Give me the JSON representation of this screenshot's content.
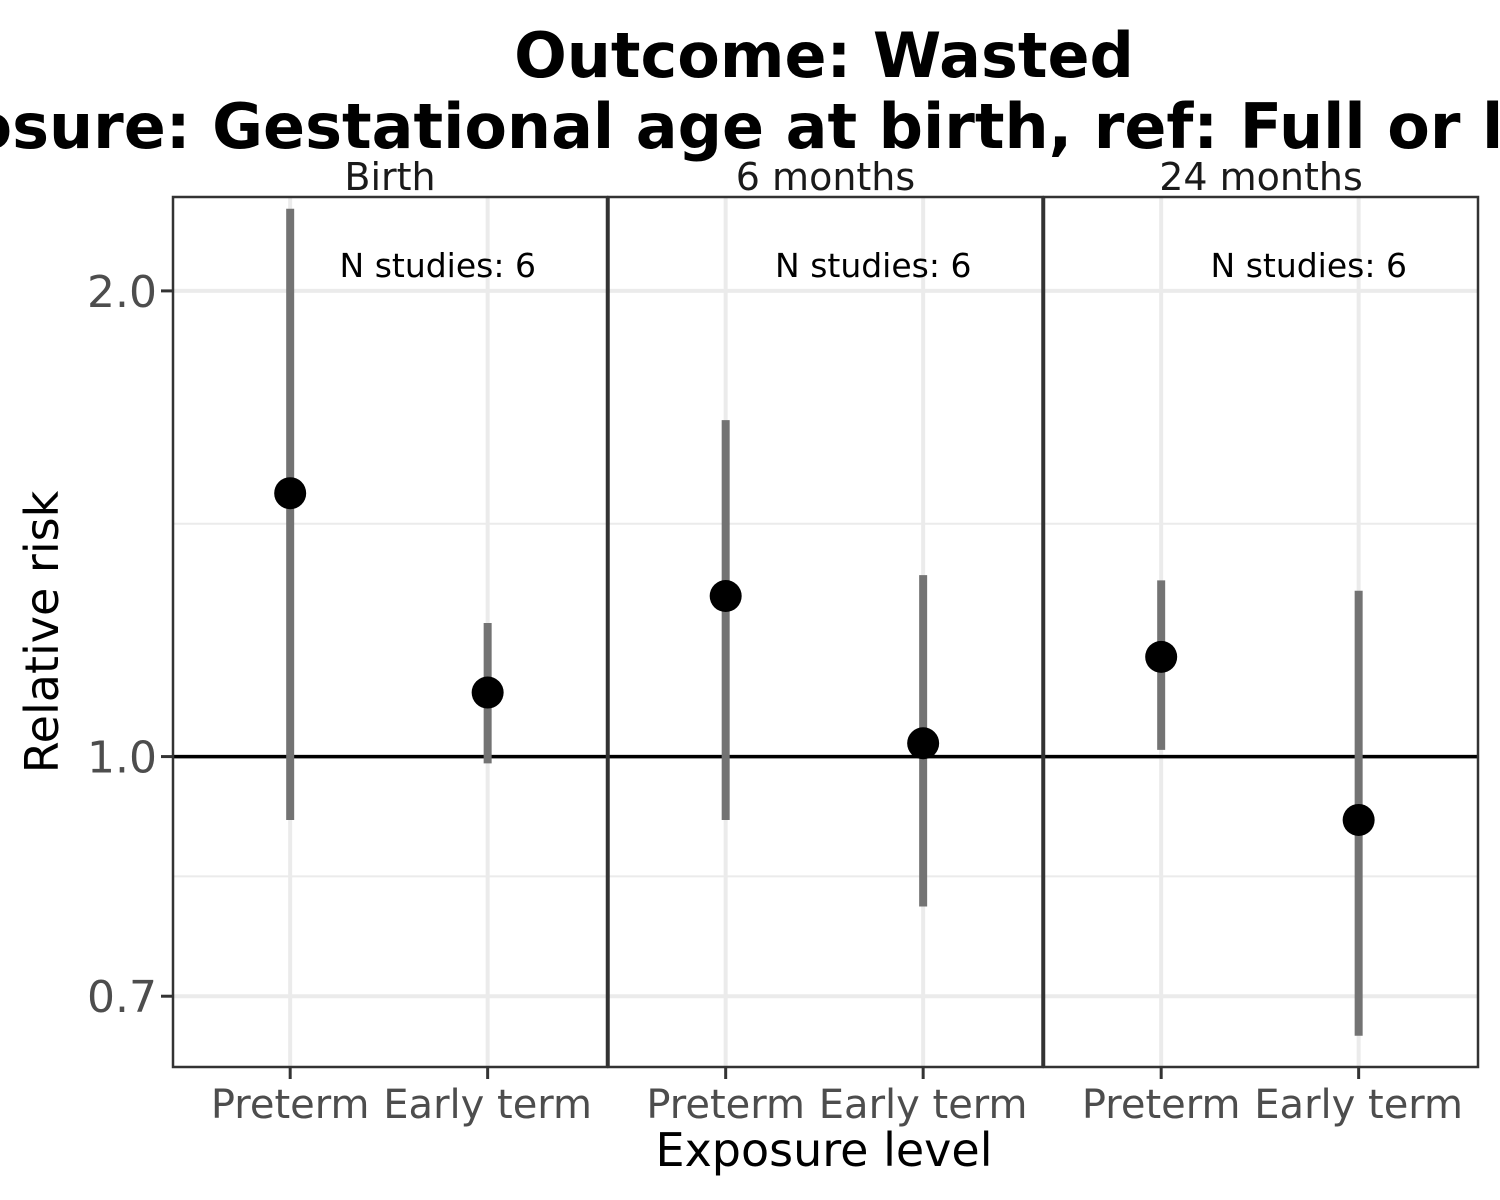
{
  "chart_data": {
    "type": "scatter",
    "title_lines": [
      "Outcome: Wasted",
      "Exposure: Gestational age at birth, ref: Full or late term"
    ],
    "xlabel": "Exposure level",
    "ylabel": "Relative risk",
    "y_scale": "log",
    "ylim": [
      0.63,
      2.3
    ],
    "y_ticks": [
      0.7,
      1.0,
      2.0
    ],
    "y_tick_labels": [
      "0.7",
      "1.0",
      "2.0"
    ],
    "reference_line": 1.0,
    "categories": [
      "Preterm",
      "Early term"
    ],
    "grid": true,
    "panels": [
      {
        "label": "Birth",
        "note": "N studies: 6",
        "points": [
          {
            "category": "Preterm",
            "rr": 1.48,
            "lower": 0.91,
            "upper": 2.26
          },
          {
            "category": "Early term",
            "rr": 1.1,
            "lower": 0.99,
            "upper": 1.22
          }
        ]
      },
      {
        "label": "6 months",
        "note": "N studies: 6",
        "points": [
          {
            "category": "Preterm",
            "rr": 1.27,
            "lower": 0.91,
            "upper": 1.65
          },
          {
            "category": "Early term",
            "rr": 1.02,
            "lower": 0.8,
            "upper": 1.31
          }
        ]
      },
      {
        "label": "24 months",
        "note": "N studies: 6",
        "points": [
          {
            "category": "Preterm",
            "rr": 1.16,
            "lower": 1.01,
            "upper": 1.3
          },
          {
            "category": "Early term",
            "rr": 0.91,
            "lower": 0.66,
            "upper": 1.28
          }
        ]
      }
    ]
  }
}
